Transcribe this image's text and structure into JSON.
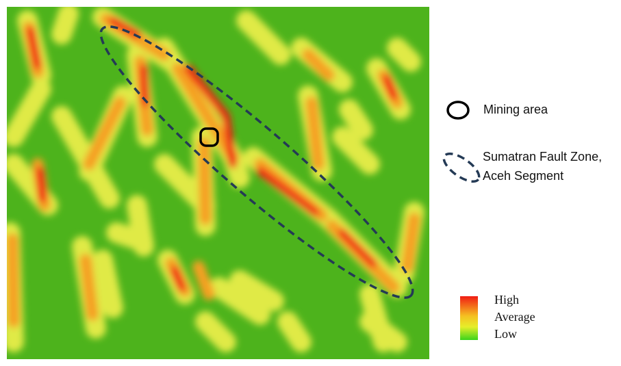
{
  "colors": {
    "low": "#4db31c",
    "average": "#f5a021",
    "high": "#f01c14",
    "fault_outline": "#243a55",
    "mining_outline": "#000000"
  },
  "legend": {
    "mining_area": "Mining area",
    "fault_zone_line1": "Sumatran Fault Zone,",
    "fault_zone_line2": "Aceh Segment"
  },
  "color_scale": {
    "high": "High",
    "average": "Average",
    "low": "Low"
  }
}
